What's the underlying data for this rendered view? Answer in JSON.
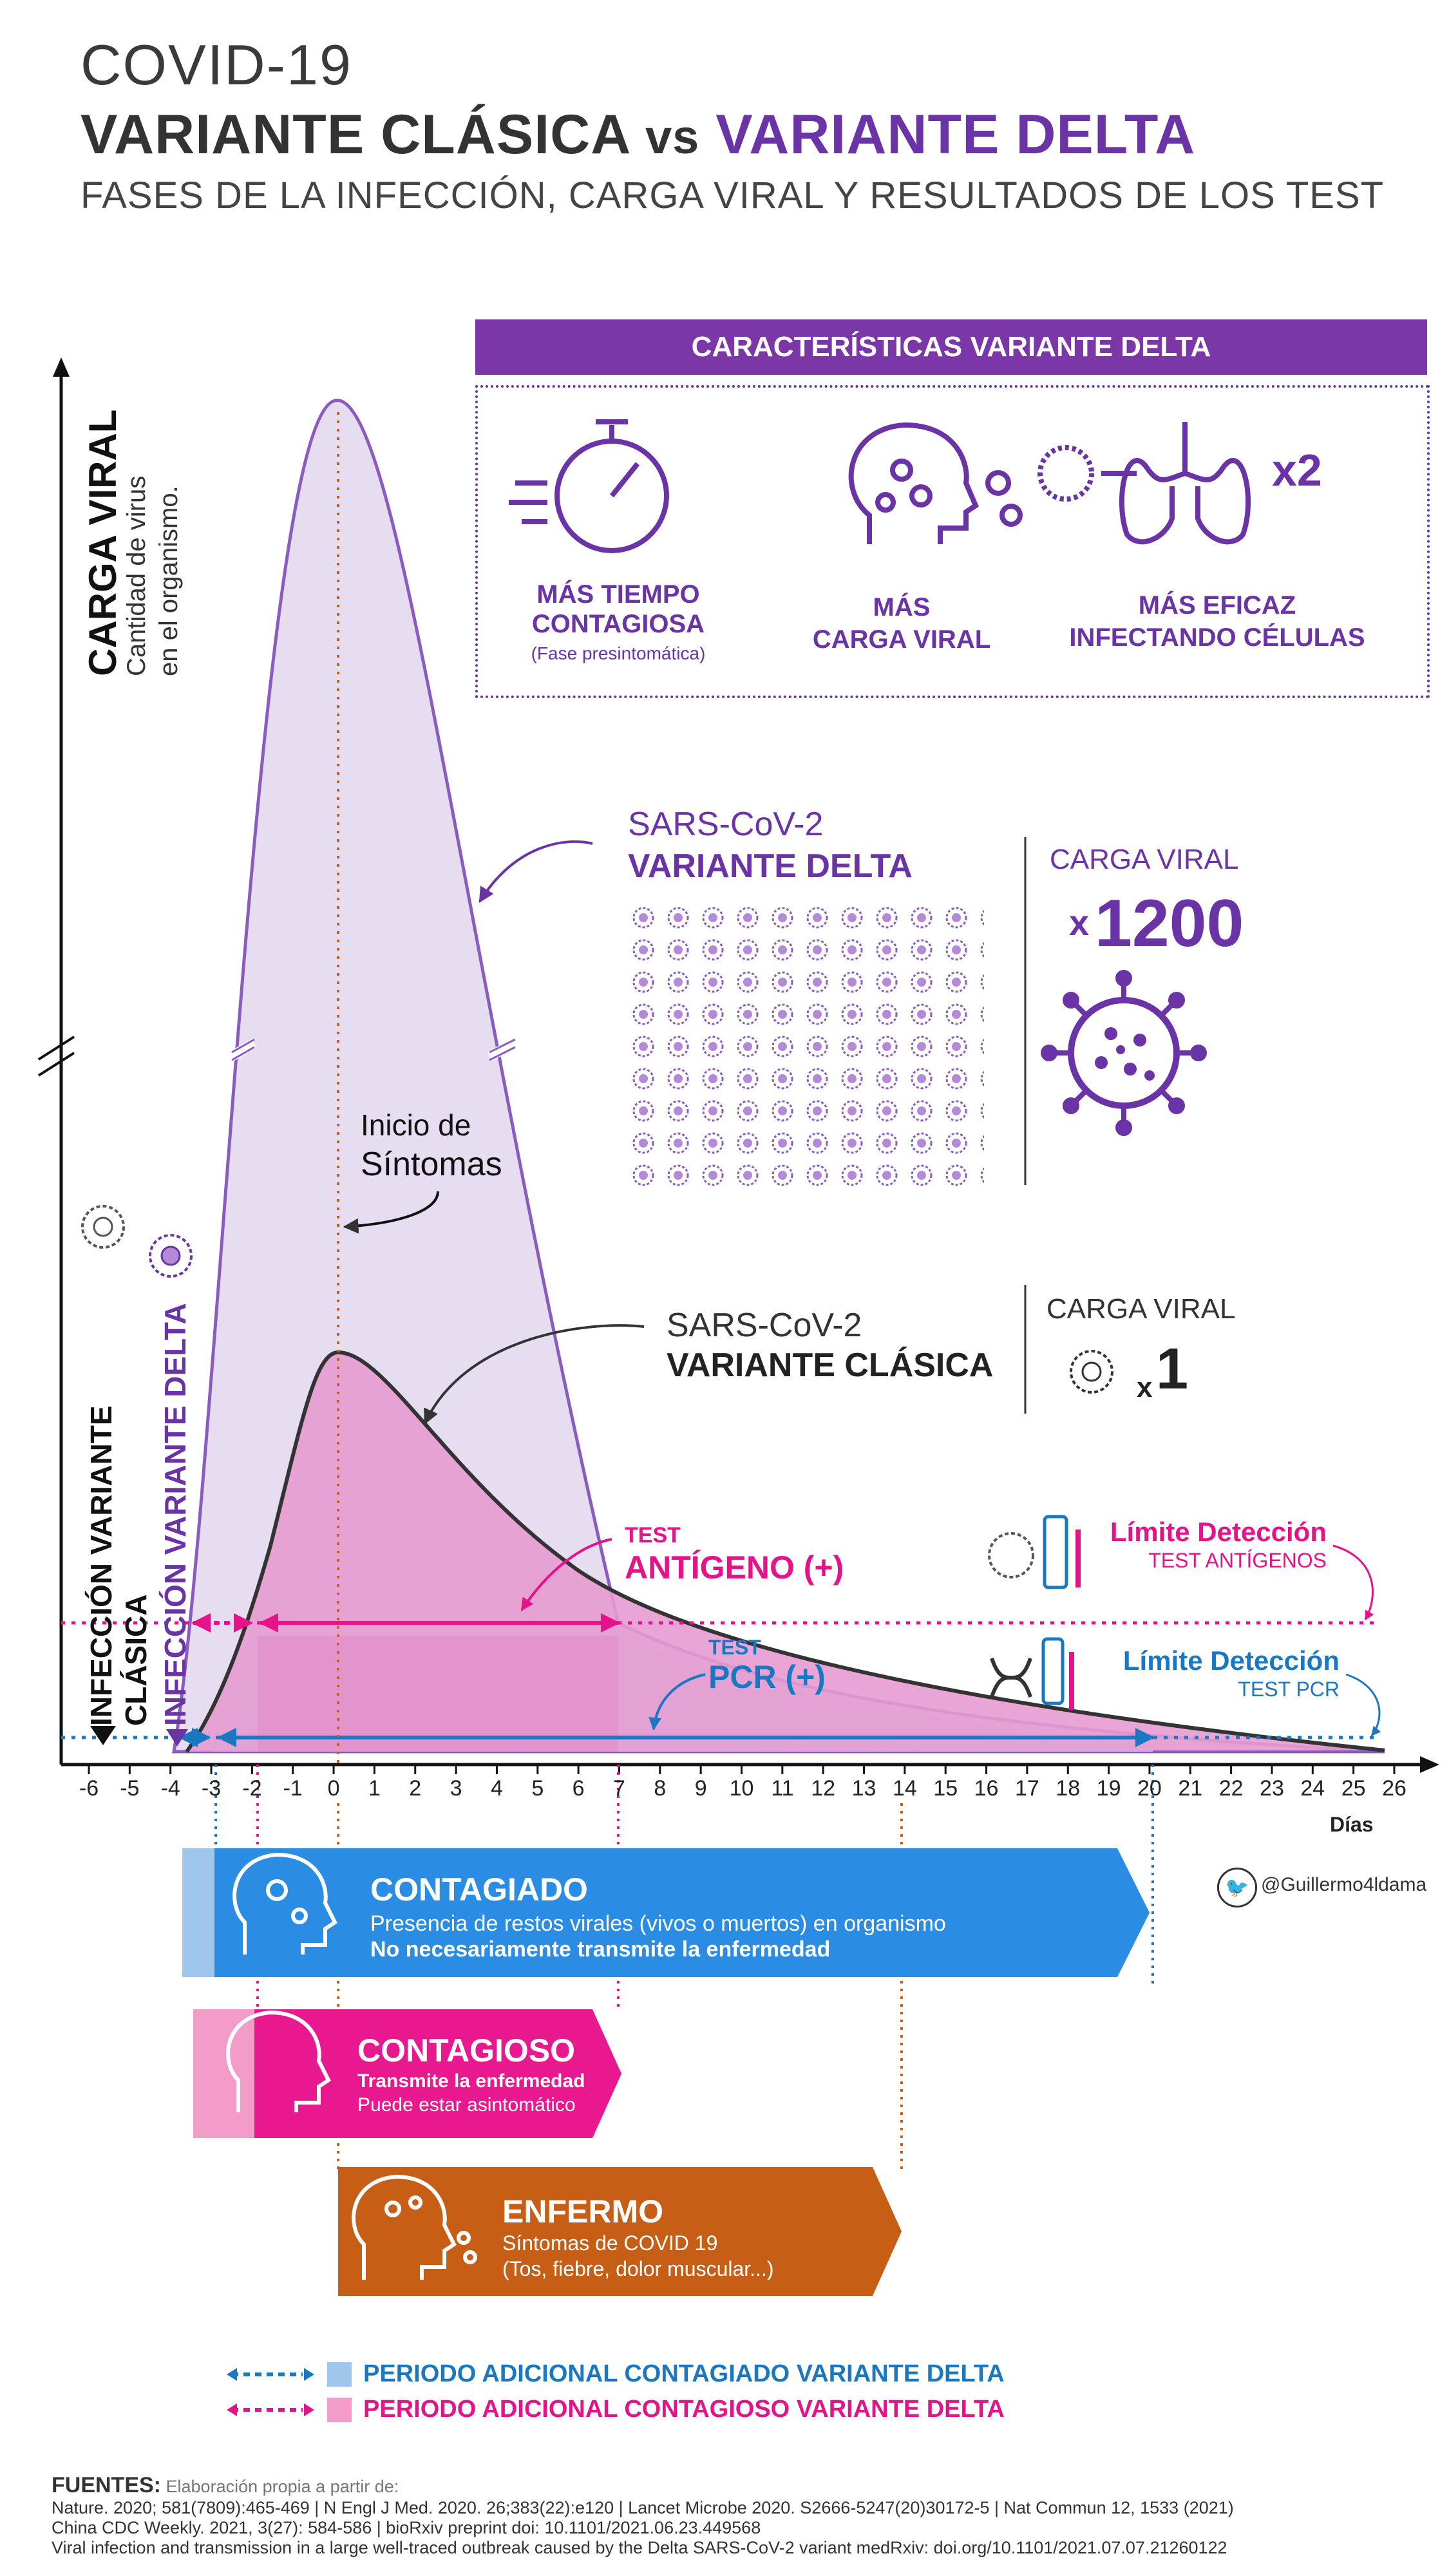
{
  "header": {
    "line1": "COVID-19",
    "line2_a": "VARIANTE CLÁSICA",
    "line2_vs": "vs",
    "line2_b": "VARIANTE DELTA",
    "line3": "FASES DE LA INFECCIÓN, CARGA VIRAL Y RESULTADOS DE LOS TEST"
  },
  "y_axis": {
    "title": "CARGA VIRAL",
    "subtitle_1": "Cantidad de virus",
    "subtitle_2": "en el organismo."
  },
  "features": {
    "banner": "CARACTERÍSTICAS VARIANTE DELTA",
    "item1_line1": "MÁS TIEMPO",
    "item1_line2": "CONTAGIOSA",
    "item1_note": "(Fase presintomática)",
    "item2_line1": "MÁS",
    "item2_line2": "CARGA VIRAL",
    "item3_line1": "MÁS EFICAZ",
    "item3_line2": "INFECTANDO CÉLULAS",
    "item3_multiplier": "x2"
  },
  "delta_label": {
    "line1": "SARS-CoV-2",
    "line2": "VARIANTE DELTA",
    "carga": "CARGA VIRAL",
    "factor_x": "x",
    "factor": "1200"
  },
  "classic_label": {
    "line1": "SARS-CoV-2",
    "line2": "VARIANTE CLÁSICA",
    "carga": "CARGA VIRAL",
    "factor_x": "x",
    "factor": "1"
  },
  "symptoms_label": {
    "line1": "Inicio de",
    "line2": "Síntomas"
  },
  "infection_labels": {
    "classic": "INFECCIÓN VARIANTE CLÁSICA",
    "delta": "INFECCIÓN VARIANTE DELTA"
  },
  "tests": {
    "antigen_top": "TEST",
    "antigen_main": "ANTÍGENO (+)",
    "pcr_top": "TEST",
    "pcr_main": "PCR (+)",
    "antigen_limit_title": "Límite Detección",
    "antigen_limit_sub": "TEST ANTÍGENOS",
    "pcr_limit_title": "Límite Detección",
    "pcr_limit_sub": "TEST PCR"
  },
  "x_axis": {
    "ticks": [
      "-6",
      "-5",
      "-4",
      "-3",
      "-2",
      "-1",
      "0",
      "1",
      "2",
      "3",
      "4",
      "5",
      "6",
      "7",
      "8",
      "9",
      "10",
      "11",
      "12",
      "13",
      "14",
      "15",
      "16",
      "17",
      "18",
      "19",
      "20",
      "21",
      "22",
      "23",
      "24",
      "25",
      "26"
    ],
    "label": "Días"
  },
  "chart_data": {
    "type": "area",
    "x_range": [
      -6,
      26
    ],
    "series": [
      {
        "name": "VARIANTE DELTA",
        "x": [
          -4,
          -3,
          -2,
          -1,
          0,
          1,
          2,
          3,
          4,
          5,
          6,
          7,
          10,
          15,
          20,
          26
        ],
        "y_relative": [
          0,
          0.05,
          0.35,
          0.8,
          1.0,
          0.92,
          0.75,
          0.55,
          0.35,
          0.2,
          0.1,
          0.05,
          0.03,
          0.015,
          0.008,
          0.003
        ]
      },
      {
        "name": "VARIANTE CLÁSICA",
        "x": [
          -4,
          -3,
          -2,
          -1,
          0,
          1,
          2,
          3,
          4,
          5,
          6,
          7,
          10,
          15,
          20,
          26
        ],
        "y_relative": [
          0,
          0.01,
          0.05,
          0.2,
          0.28,
          0.26,
          0.22,
          0.17,
          0.13,
          0.1,
          0.075,
          0.055,
          0.03,
          0.015,
          0.008,
          0.003
        ]
      }
    ],
    "delta_factor": 1200,
    "classic_factor": 1,
    "symptom_onset_day": 0,
    "antigen_positive_days": [
      -2,
      7
    ],
    "delta_antigen_extra_days": [
      -4,
      -2
    ],
    "pcr_positive_days": [
      -3,
      20
    ],
    "delta_pcr_extra_days": [
      -4,
      -3
    ]
  },
  "phases": {
    "infected_title": "CONTAGIADO",
    "infected_sub1": "Presencia de restos virales (vivos o muertos) en organismo",
    "infected_sub2": "No necesariamente transmite la enfermedad",
    "contagious_title": "CONTAGIOSO",
    "contagious_sub1": "Transmite la enfermedad",
    "contagious_sub2": "Puede estar asintomático",
    "sick_title": "ENFERMO",
    "sick_sub1": "Síntomas de COVID 19",
    "sick_sub2": "(Tos, fiebre, dolor muscular...)",
    "twitter": "@Guillermo4ldama"
  },
  "legend": {
    "blue": "PERIODO ADICIONAL CONTAGIADO VARIANTE DELTA",
    "pink": "PERIODO ADICIONAL CONTAGIOSO VARIANTE DELTA"
  },
  "sources": {
    "label": "FUENTES:",
    "intro": "Elaboración propia a partir de:",
    "line1": "Nature. 2020; 581(7809):465-469 | N Engl J Med. 2020. 26;383(22):e120 | Lancet Microbe 2020. S2666-5247(20)30172-5 | Nat Commun 12, 1533 (2021)",
    "line2": "China CDC Weekly. 2021, 3(27): 584-586 | bioRxiv preprint doi: 10.1101/2021.06.23.449568",
    "line3": "Viral infection and transmission in a large well-traced outbreak caused by the Delta SARS-CoV-2 variant medRxiv: doi.org/10.1101/2021.07.07.21260122"
  },
  "colors": {
    "purple": "#6a33a6",
    "pink": "#e4138a",
    "blue": "#1a78c2",
    "orange": "#c9600f",
    "delta_fill": "#e6def0",
    "classic_fill": "#e79bd0",
    "pcr_fill": "#b9cdee"
  }
}
